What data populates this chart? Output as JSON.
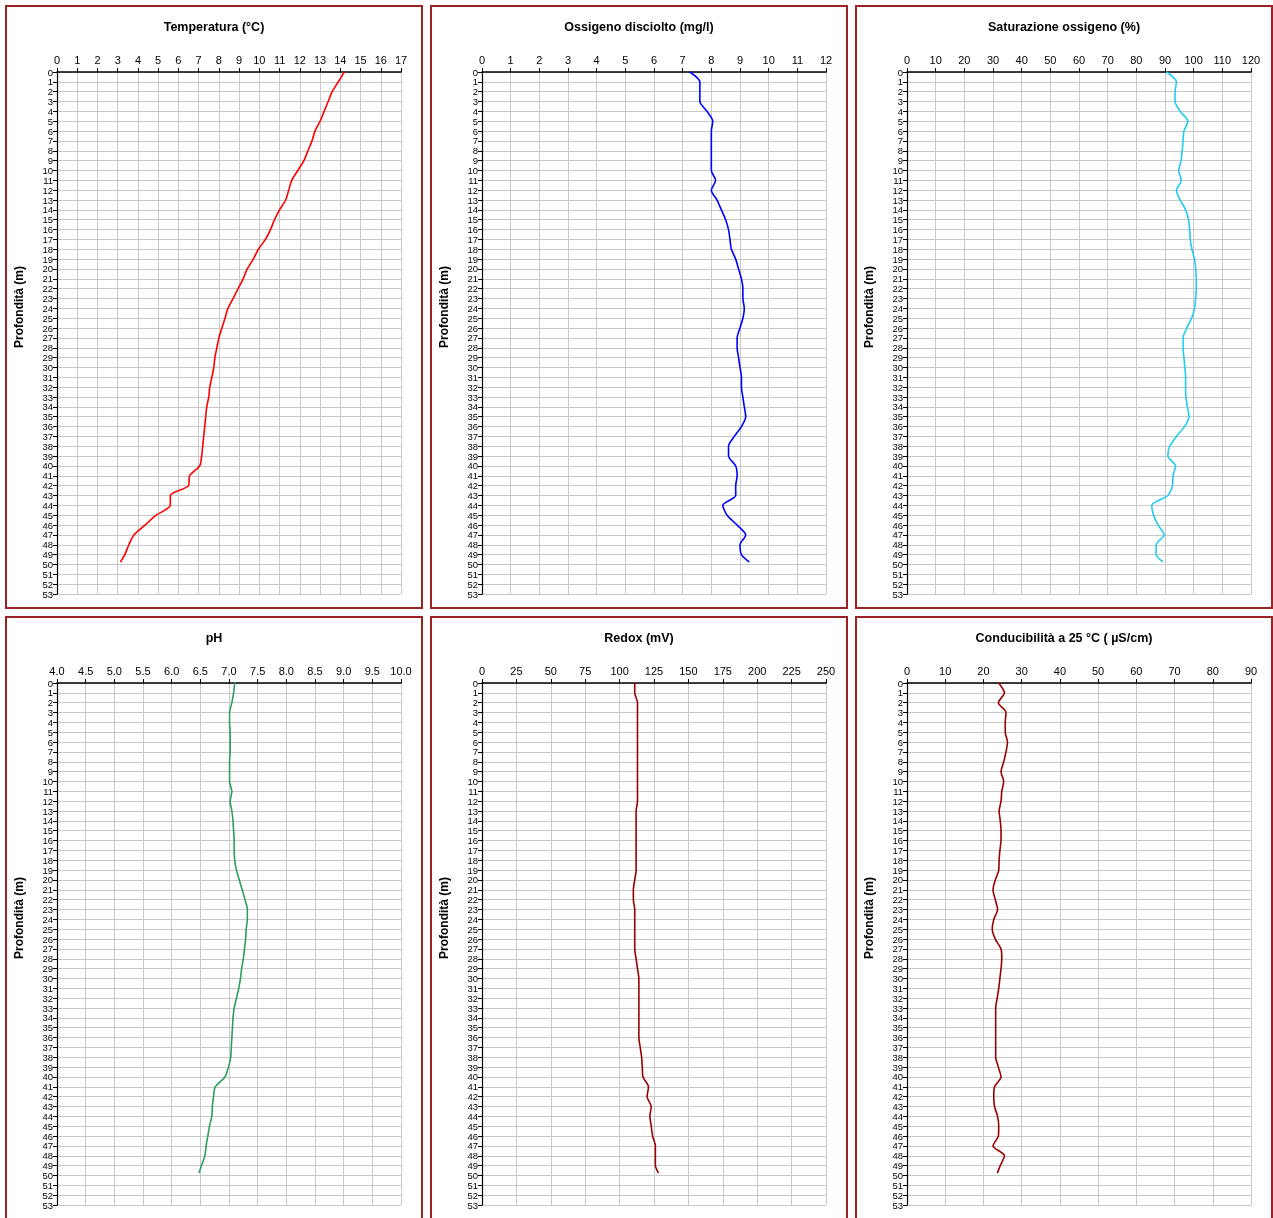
{
  "chart_data": [
    {
      "type": "line",
      "title": "Temperatura (°C)",
      "ylabel": "Profondità (m)",
      "xlim": [
        0,
        17
      ],
      "xticks": [
        0,
        1,
        2,
        3,
        4,
        5,
        6,
        7,
        8,
        9,
        10,
        11,
        12,
        13,
        14,
        15,
        16,
        17
      ],
      "ylim": [
        53,
        0
      ],
      "yticks": [
        0,
        1,
        2,
        3,
        4,
        5,
        6,
        7,
        8,
        9,
        10,
        11,
        12,
        13,
        14,
        15,
        16,
        17,
        18,
        19,
        20,
        21,
        22,
        23,
        24,
        25,
        26,
        27,
        28,
        29,
        30,
        31,
        32,
        33,
        34,
        35,
        36,
        37,
        38,
        39,
        40,
        41,
        42,
        43,
        44,
        45,
        46,
        47,
        48,
        49,
        50,
        51,
        52,
        53
      ],
      "grid": true,
      "marker": "none",
      "line_style": "solid",
      "series": [
        {
          "color": "#ff0000",
          "x": [
            14.2,
            13.9,
            13.6,
            13.4,
            13.2,
            13.0,
            12.75,
            12.6,
            12.4,
            12.2,
            11.9,
            11.6,
            11.45,
            11.3,
            11.0,
            10.75,
            10.55,
            10.3,
            9.95,
            9.7,
            9.4,
            9.2,
            8.95,
            8.7,
            8.45,
            8.3,
            8.15,
            8.0,
            7.9,
            7.8,
            7.75,
            7.65,
            7.55,
            7.5,
            7.4,
            7.35,
            7.3,
            7.25,
            7.2,
            7.15,
            7.05,
            6.55,
            6.5,
            5.6,
            5.6,
            4.9,
            4.35,
            3.8,
            3.55,
            3.35,
            3.15
          ],
          "values": [
            0,
            1,
            2,
            3,
            4,
            5,
            6,
            7,
            8,
            9,
            10,
            11,
            12,
            13,
            14,
            15,
            16,
            17,
            18,
            19,
            20,
            21,
            22,
            23,
            24,
            25,
            26,
            27,
            28,
            29,
            30,
            31,
            32,
            33,
            34,
            35,
            36,
            37,
            38,
            39,
            40,
            41,
            42,
            43,
            44,
            45,
            46,
            47,
            48,
            49,
            49.7
          ]
        }
      ]
    },
    {
      "type": "line",
      "title": "Ossigeno disciolto (mg/l)",
      "ylabel": "Profondità (m)",
      "xlim": [
        0,
        12
      ],
      "xticks": [
        0,
        1,
        2,
        3,
        4,
        5,
        6,
        7,
        8,
        9,
        10,
        11,
        12
      ],
      "ylim": [
        53,
        0
      ],
      "yticks": [
        0,
        1,
        2,
        3,
        4,
        5,
        6,
        7,
        8,
        9,
        10,
        11,
        12,
        13,
        14,
        15,
        16,
        17,
        18,
        19,
        20,
        21,
        22,
        23,
        24,
        25,
        26,
        27,
        28,
        29,
        30,
        31,
        32,
        33,
        34,
        35,
        36,
        37,
        38,
        39,
        40,
        41,
        42,
        43,
        44,
        45,
        46,
        47,
        48,
        49,
        50,
        51,
        52,
        53
      ],
      "grid": true,
      "marker": "none",
      "line_style": "solid",
      "series": [
        {
          "color": "#0000ff",
          "x": [
            7.25,
            7.6,
            7.6,
            7.6,
            7.85,
            8.05,
            8.0,
            8.0,
            8.0,
            8.0,
            8.0,
            8.15,
            8.0,
            8.2,
            8.35,
            8.5,
            8.6,
            8.65,
            8.7,
            8.85,
            8.95,
            9.05,
            9.1,
            9.1,
            9.15,
            9.1,
            9.0,
            8.9,
            8.9,
            8.95,
            9.0,
            9.05,
            9.05,
            9.1,
            9.15,
            9.2,
            9.05,
            8.8,
            8.6,
            8.6,
            8.85,
            8.9,
            8.85,
            8.85,
            8.4,
            8.55,
            8.9,
            9.2,
            9.0,
            9.05,
            9.3
          ],
          "values": [
            0,
            1,
            2,
            3,
            4,
            5,
            6,
            7,
            8,
            9,
            10,
            11,
            12,
            13,
            14,
            15,
            16,
            17,
            18,
            19,
            20,
            21,
            22,
            23,
            24,
            25,
            26,
            27,
            28,
            29,
            30,
            31,
            32,
            33,
            34,
            35,
            36,
            37,
            38,
            39,
            40,
            41,
            42,
            43,
            44,
            45,
            46,
            47,
            48,
            49,
            49.7
          ]
        }
      ]
    },
    {
      "type": "line",
      "title": "Saturazione ossigeno (%)",
      "ylabel": "Profondità (m)",
      "xlim": [
        0,
        120
      ],
      "xticks": [
        0,
        10,
        20,
        30,
        40,
        50,
        60,
        70,
        80,
        90,
        100,
        110,
        120
      ],
      "ylim": [
        53,
        0
      ],
      "yticks": [
        0,
        1,
        2,
        3,
        4,
        5,
        6,
        7,
        8,
        9,
        10,
        11,
        12,
        13,
        14,
        15,
        16,
        17,
        18,
        19,
        20,
        21,
        22,
        23,
        24,
        25,
        26,
        27,
        28,
        29,
        30,
        31,
        32,
        33,
        34,
        35,
        36,
        37,
        38,
        39,
        40,
        41,
        42,
        43,
        44,
        45,
        46,
        47,
        48,
        49,
        50,
        51,
        52,
        53
      ],
      "grid": true,
      "marker": "none",
      "line_style": "solid",
      "series": [
        {
          "color": "#22ccee",
          "x": [
            90.6,
            94,
            93.5,
            93.5,
            95.3,
            98,
            96.6,
            96.3,
            96,
            95.6,
            94.8,
            95.7,
            94,
            95.3,
            97.2,
            98.2,
            98.6,
            98.8,
            99.4,
            100.3,
            100.7,
            100.9,
            100.9,
            100.7,
            100.3,
            99.3,
            97.6,
            96.3,
            96.3,
            96.6,
            96.9,
            97.2,
            97.2,
            97.3,
            97.8,
            98.4,
            96.8,
            94,
            91.6,
            91,
            93.7,
            92.8,
            92.6,
            91,
            85.4,
            86,
            87.6,
            89.7,
            86.9,
            86.9,
            89.1
          ],
          "values": [
            0,
            1,
            2,
            3,
            4,
            5,
            6,
            7,
            8,
            9,
            10,
            11,
            12,
            13,
            14,
            15,
            16,
            17,
            18,
            19,
            20,
            21,
            22,
            23,
            24,
            25,
            26,
            27,
            28,
            29,
            30,
            31,
            32,
            33,
            34,
            35,
            36,
            37,
            38,
            39,
            40,
            41,
            42,
            43,
            44,
            45,
            46,
            47,
            48,
            49,
            49.7
          ]
        }
      ]
    },
    {
      "type": "line",
      "title": "pH",
      "ylabel": "Profondità (m)",
      "xlim": [
        4,
        10
      ],
      "xticks": [
        {
          "value": 4,
          "label": "4.0"
        },
        {
          "value": 4.5,
          "label": "4.5"
        },
        {
          "value": 5,
          "label": "5.0"
        },
        {
          "value": 5.5,
          "label": "5.5"
        },
        {
          "value": 6,
          "label": "6.0"
        },
        {
          "value": 6.5,
          "label": "6.5"
        },
        {
          "value": 7,
          "label": "7.0"
        },
        {
          "value": 7.5,
          "label": "7.5"
        },
        {
          "value": 8,
          "label": "8.0"
        },
        {
          "value": 8.5,
          "label": "8.5"
        },
        {
          "value": 9,
          "label": "9.0"
        },
        {
          "value": 9.5,
          "label": "9.5"
        },
        {
          "value": 10,
          "label": "10.0"
        }
      ],
      "ylim": [
        53,
        0
      ],
      "yticks": [
        0,
        1,
        2,
        3,
        4,
        5,
        6,
        7,
        8,
        9,
        10,
        11,
        12,
        13,
        14,
        15,
        16,
        17,
        18,
        19,
        20,
        21,
        22,
        23,
        24,
        25,
        26,
        27,
        28,
        29,
        30,
        31,
        32,
        33,
        34,
        35,
        36,
        37,
        38,
        39,
        40,
        41,
        42,
        43,
        44,
        45,
        46,
        47,
        48,
        49,
        50,
        51,
        52,
        53
      ],
      "grid": true,
      "marker": "none",
      "line_style": "solid",
      "series": [
        {
          "color": "#2e9e5e",
          "x": [
            7.1,
            7.08,
            7.05,
            7.01,
            7.01,
            7.02,
            7.02,
            7.02,
            7.01,
            7.01,
            7.01,
            7.05,
            7.02,
            7.05,
            7.07,
            7.08,
            7.09,
            7.09,
            7.1,
            7.13,
            7.18,
            7.23,
            7.28,
            7.32,
            7.32,
            7.3,
            7.29,
            7.27,
            7.25,
            7.22,
            7.2,
            7.17,
            7.13,
            7.09,
            7.07,
            7.06,
            7.05,
            7.04,
            7.03,
            6.99,
            6.93,
            6.76,
            6.73,
            6.71,
            6.7,
            6.66,
            6.63,
            6.6,
            6.58,
            6.52,
            6.48
          ],
          "values": [
            0,
            1,
            2,
            3,
            4,
            5,
            6,
            7,
            8,
            9,
            10,
            11,
            12,
            13,
            14,
            15,
            16,
            17,
            18,
            19,
            20,
            21,
            22,
            23,
            24,
            25,
            26,
            27,
            28,
            29,
            30,
            31,
            32,
            33,
            34,
            35,
            36,
            37,
            38,
            39,
            40,
            41,
            42,
            43,
            44,
            45,
            46,
            47,
            48,
            49,
            49.7
          ]
        }
      ]
    },
    {
      "type": "line",
      "title": "Redox (mV)",
      "ylabel": "Profondità (m)",
      "xlim": [
        0,
        250
      ],
      "xticks": [
        0,
        25,
        50,
        75,
        100,
        125,
        150,
        175,
        200,
        225,
        250
      ],
      "ylim": [
        53,
        0
      ],
      "yticks": [
        0,
        1,
        2,
        3,
        4,
        5,
        6,
        7,
        8,
        9,
        10,
        11,
        12,
        13,
        14,
        15,
        16,
        17,
        18,
        19,
        20,
        21,
        22,
        23,
        24,
        25,
        26,
        27,
        28,
        29,
        30,
        31,
        32,
        33,
        34,
        35,
        36,
        37,
        38,
        39,
        40,
        41,
        42,
        43,
        44,
        45,
        46,
        47,
        48,
        49,
        50,
        51,
        52,
        53
      ],
      "grid": true,
      "marker": "none",
      "line_style": "solid",
      "series": [
        {
          "color": "#990000",
          "x": [
            111,
            111,
            113,
            113,
            113,
            113,
            113,
            113,
            113,
            113,
            113,
            113,
            113,
            112,
            112,
            112,
            112,
            112,
            112,
            112,
            111,
            110,
            110,
            111,
            111,
            111,
            111,
            111,
            112,
            113,
            114,
            114,
            114,
            114,
            114,
            114,
            114,
            115,
            116,
            116.5,
            117,
            121,
            120,
            123,
            122,
            123,
            124,
            126,
            126,
            126,
            128
          ],
          "values": [
            0,
            1,
            2,
            3,
            4,
            5,
            6,
            7,
            8,
            9,
            10,
            11,
            12,
            13,
            14,
            15,
            16,
            17,
            18,
            19,
            20,
            21,
            22,
            23,
            24,
            25,
            26,
            27,
            28,
            29,
            30,
            31,
            32,
            33,
            34,
            35,
            36,
            37,
            38,
            39,
            40,
            41,
            42,
            43,
            44,
            45,
            46,
            47,
            48,
            49,
            49.7
          ]
        }
      ]
    },
    {
      "type": "line",
      "title": "Conducibilità a 25 °C ( µS/cm)",
      "ylabel": "Profondità (m)",
      "xlim": [
        0,
        90
      ],
      "xticks": [
        0,
        10,
        20,
        30,
        40,
        50,
        60,
        70,
        80,
        90
      ],
      "ylim": [
        53,
        0
      ],
      "yticks": [
        0,
        1,
        2,
        3,
        4,
        5,
        6,
        7,
        8,
        9,
        10,
        11,
        12,
        13,
        14,
        15,
        16,
        17,
        18,
        19,
        20,
        21,
        22,
        23,
        24,
        25,
        26,
        27,
        28,
        29,
        30,
        31,
        32,
        33,
        34,
        35,
        36,
        37,
        38,
        39,
        40,
        41,
        42,
        43,
        44,
        45,
        46,
        47,
        48,
        49,
        50,
        51,
        52,
        53
      ],
      "grid": true,
      "marker": "none",
      "line_style": "solid",
      "series": [
        {
          "color": "#990000",
          "x": [
            24,
            25.5,
            23.9,
            25.9,
            25.7,
            25.7,
            26.3,
            25.9,
            25.3,
            24.6,
            25.3,
            24.8,
            24.6,
            24.1,
            24.4,
            24.6,
            24.6,
            24.3,
            24.1,
            24,
            23.1,
            22.5,
            23.1,
            23.7,
            22.7,
            22.3,
            23.1,
            24.6,
            24.8,
            24.6,
            24.3,
            24,
            23.6,
            23.2,
            23.2,
            23.2,
            23.2,
            23.2,
            23.2,
            23.9,
            24.6,
            22.9,
            22.7,
            22.9,
            23.7,
            24,
            23.9,
            22.5,
            25.5,
            24.4,
            23.7
          ],
          "values": [
            0,
            1,
            2,
            3,
            4,
            5,
            6,
            7,
            8,
            9,
            10,
            11,
            12,
            13,
            14,
            15,
            16,
            17,
            18,
            19,
            20,
            21,
            22,
            23,
            24,
            25,
            26,
            27,
            28,
            29,
            30,
            31,
            32,
            33,
            34,
            35,
            36,
            37,
            38,
            39,
            40,
            41,
            42,
            43,
            44,
            45,
            46,
            47,
            48,
            49,
            49.7
          ]
        }
      ]
    }
  ]
}
